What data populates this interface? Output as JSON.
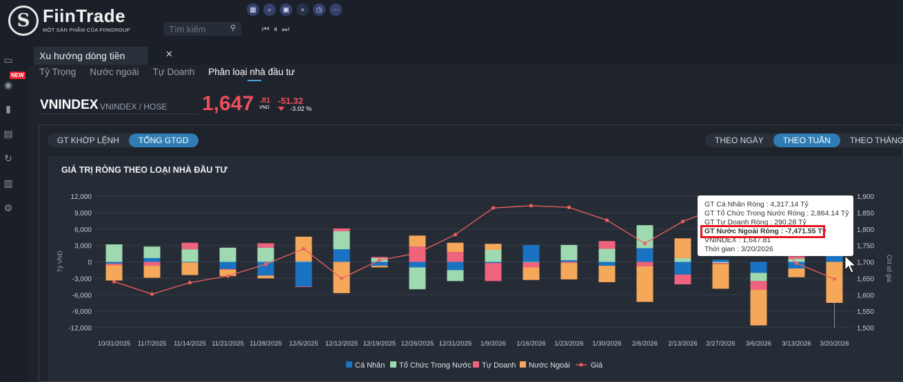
{
  "brand": {
    "name": "FiinTrade",
    "tagline": "MỘT SẢN PHẨM CỦA FIINGROUP"
  },
  "search": {
    "placeholder": "Tìm kiếm"
  },
  "sidebar": {
    "new_badge": "NEW"
  },
  "tab": {
    "title": "Xu hướng dòng tiền"
  },
  "subtabs": [
    "Tỷ Trọng",
    "Nước ngoài",
    "Tự Doanh",
    "Phân loại nhà đầu tư"
  ],
  "ticker": {
    "symbol": "VNINDEX",
    "exchange": "VNINDEX / HOSE",
    "price_int": "1,647",
    "price_dec": ".81",
    "unit": "VND",
    "change": "-51.32",
    "change_pct": "-3.02 %"
  },
  "value_toggle": [
    "GT KHỚP LỆNH",
    "TỔNG GTGD"
  ],
  "period_toggle": [
    "THEO NGÀY",
    "THEO TUẦN",
    "THEO THÁNG"
  ],
  "chart_title": "GIÁ TRỊ RÒNG THEO LOẠI NHÀ ĐẦU TƯ",
  "tooltip": {
    "line1": "GT Cá Nhân Ròng : 4,317.14 Tỷ",
    "line2": "GT Tổ Chức Trong Nước Ròng : 2,864.14 Tỷ",
    "line3": "GT Tự Doanh Ròng : 290.28 Tỷ",
    "line4": "GT Nước Ngoài Ròng : -7,471.55 Tỷ",
    "line5": "VNINDEX : 1,647.81",
    "line6": "Thời gian : 3/20/2026"
  },
  "colors": {
    "ca_nhan": "#1a73c2",
    "to_chuc": "#9fd9b0",
    "tu_doanh": "#f0637e",
    "nuoc_ngoai": "#f5a85a",
    "gia": "#f0605e"
  },
  "chart_data": {
    "type": "bar",
    "stacked": true,
    "title": "GIÁ TRỊ RÒNG THEO LOẠI NHÀ ĐẦU TƯ",
    "ylabel": "Tỷ VND",
    "y2label": "Chỉ số giá",
    "ylim": [
      -12000,
      12000
    ],
    "yticks": [
      "12,000",
      "9,000",
      "6,000",
      "3,000",
      "0",
      "-3,000",
      "-6,000",
      "-9,000",
      "-12,000"
    ],
    "y2lim": [
      1500,
      1900
    ],
    "y2ticks": [
      "1,900",
      "1,850",
      "1,800",
      "1,750",
      "1,700",
      "1,650",
      "1,600",
      "1,550",
      "1,500"
    ],
    "categories": [
      "10/31/2025",
      "11/7/2025",
      "11/14/2025",
      "11/21/2025",
      "11/28/2025",
      "12/5/2025",
      "12/12/2025",
      "12/19/2025",
      "12/26/2025",
      "12/31/2025",
      "1/9/2026",
      "1/16/2026",
      "1/23/2026",
      "1/30/2026",
      "2/6/2026",
      "2/13/2026",
      "2/27/2026",
      "3/6/2026",
      "3/13/2026",
      "3/20/2026"
    ],
    "series": [
      {
        "name": "Cá Nhân",
        "values": [
          -300,
          700,
          -100,
          -1300,
          -2500,
          -4500,
          2300,
          -700,
          -1000,
          -1500,
          -200,
          3100,
          300,
          -700,
          2500,
          -2300,
          400,
          -2000,
          -1200,
          4317
        ]
      },
      {
        "name": "Tổ Chức Trong Nước",
        "values": [
          3200,
          2100,
          2300,
          2600,
          2600,
          100,
          3300,
          700,
          -4000,
          -2000,
          2200,
          -100,
          2800,
          2400,
          4200,
          700,
          -200,
          -1500,
          600,
          2864
        ]
      },
      {
        "name": "Tự Doanh",
        "values": [
          -300,
          -700,
          1200,
          -100,
          800,
          -100,
          500,
          200,
          2800,
          1800,
          -3300,
          -900,
          -200,
          1400,
          -800,
          -1800,
          -200,
          -1600,
          400,
          290
        ]
      },
      {
        "name": "Nước Ngoài",
        "values": [
          -2800,
          -2200,
          -2300,
          -1200,
          -500,
          4500,
          -5700,
          -300,
          2000,
          1700,
          1100,
          -2300,
          -3000,
          -3000,
          -6500,
          3600,
          -4500,
          -6500,
          -1600,
          -7472
        ]
      }
    ],
    "line": {
      "name": "Giá",
      "values": [
        1640,
        1602,
        1637,
        1657,
        1693,
        1740,
        1650,
        1705,
        1727,
        1783,
        1864,
        1871,
        1866,
        1827,
        1756,
        1823,
        1867,
        1805,
        1696,
        1648
      ]
    },
    "legend": "bottom"
  }
}
